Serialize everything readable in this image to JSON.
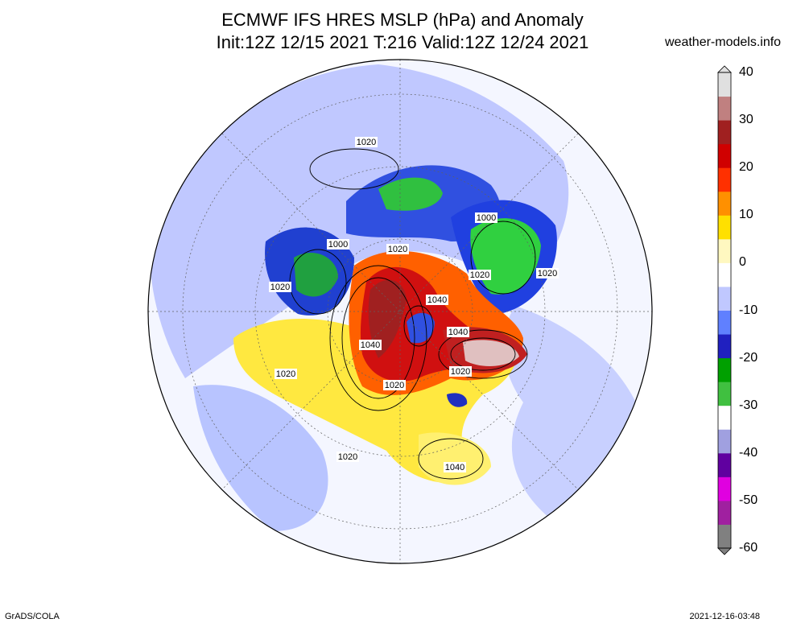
{
  "title": {
    "line1": "ECMWF IFS HRES MSLP (hPa) and Anomaly",
    "line2": "Init:12Z 12/15 2021 T:216 Valid:12Z 12/24 2021"
  },
  "source_label": "weather-models.info",
  "footer": {
    "software": "GrADS/COLA",
    "timestamp": "2021-12-16-03:48"
  },
  "colorbar": {
    "tick_labels": [
      "40",
      "30",
      "20",
      "10",
      "0",
      "-10",
      "-20",
      "-30",
      "-40",
      "-50",
      "-60"
    ],
    "range": [
      -60,
      40
    ],
    "colors": [
      "#808080",
      "#a020a0",
      "#e000e0",
      "#6000a0",
      "#a0a0e0",
      "#ffffff",
      "#40c040",
      "#00a000",
      "#2020c0",
      "#6080ff",
      "#c0c8ff",
      "#ffffff",
      "#fff8c0",
      "#ffe000",
      "#ff9000",
      "#ff3000",
      "#d00000",
      "#a02020",
      "#c08080",
      "#e0e0e0"
    ]
  },
  "map": {
    "projection": "polar-stereographic-north",
    "isobar_labels": [
      "1020",
      "1000",
      "1020",
      "1020",
      "1020",
      "1000",
      "1020",
      "1020",
      "1020",
      "1040",
      "1040",
      "1040",
      "1020",
      "1020",
      "1040",
      "1020",
      "1020",
      "1020"
    ]
  }
}
